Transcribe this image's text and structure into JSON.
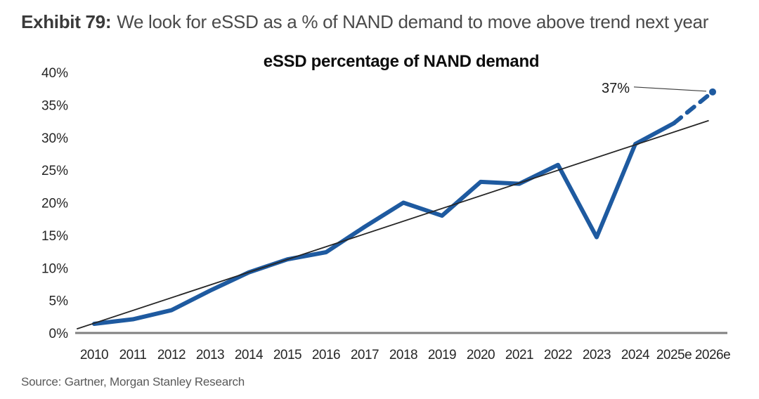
{
  "header": {
    "exhibit_label": "Exhibit 79:",
    "title": "We look for eSSD as a % of NAND demand to move above trend next year"
  },
  "source": {
    "text": "Source: Gartner, Morgan Stanley Research"
  },
  "chart_data": {
    "type": "line",
    "title": "eSSD percentage of NAND demand",
    "categories": [
      "2010",
      "2011",
      "2012",
      "2013",
      "2014",
      "2015",
      "2016",
      "2017",
      "2018",
      "2019",
      "2020",
      "2021",
      "2022",
      "2023",
      "2024",
      "2025e",
      "2026e"
    ],
    "series": [
      {
        "name": "eSSD percentage of NAND demand",
        "color": "#1e5aa0",
        "values": [
          1.4,
          2.1,
          3.5,
          6.5,
          9.3,
          11.3,
          12.4,
          16.3,
          20.0,
          18.0,
          23.2,
          22.9,
          25.8,
          14.7,
          29.0,
          32.2,
          37.0
        ],
        "forecast_from_index": 15,
        "forecast_style": "dashed"
      }
    ],
    "trendline": {
      "name": "linear trend",
      "color": "#262626",
      "start_value": 1.5,
      "end_value": 32.8
    },
    "annotation": {
      "label": "37%",
      "category": "2026e",
      "value": 37
    },
    "ylim": [
      0,
      40
    ],
    "tick_values": [
      0,
      5,
      10,
      15,
      20,
      25,
      30,
      35,
      40
    ],
    "ylabel_ticks": [
      "0%",
      "5%",
      "10%",
      "15%",
      "20%",
      "25%",
      "30%",
      "35%",
      "40%"
    ],
    "grid": false,
    "legend": "none",
    "axis_color": "#808080",
    "text_color": "#262626"
  }
}
